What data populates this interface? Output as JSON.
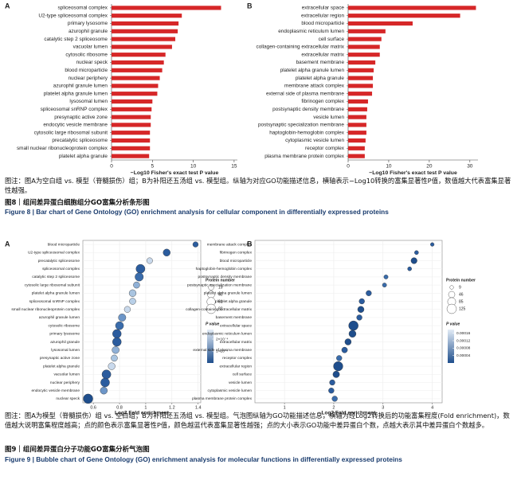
{
  "chart_data": [
    {
      "type": "bar",
      "panel": "A",
      "categories": [
        "spliceosomal complex",
        "U2-type spliceosomal complex",
        "primary lysosome",
        "azurophil granule",
        "catalytic step 2 spliceosome",
        "vacuolar lumen",
        "cytosolic ribosome",
        "nuclear speck",
        "blood microparticle",
        "nuclear periphery",
        "azurophil granule lumen",
        "platelet alpha granule lumen",
        "lysosomal lumen",
        "spliceosomal snRNP complex",
        "presynaptic active zone",
        "endocytic vesicle membrane",
        "cytosolic large ribosomal subunit",
        "precatalytic spliceosome",
        "small nuclear ribonucleoprotein complex",
        "platelet alpha granule"
      ],
      "values": [
        13.4,
        8.6,
        8.2,
        8.1,
        7.8,
        7.4,
        6.6,
        6.4,
        6.2,
        5.9,
        5.7,
        5.6,
        5.0,
        4.9,
        4.8,
        4.8,
        4.7,
        4.7,
        4.7,
        4.6
      ],
      "color": "#d62728",
      "xlim": [
        0,
        15.4
      ],
      "xticks": [
        0,
        5,
        10,
        15
      ],
      "x_label": "−Log10 Fisher's exact test P value"
    },
    {
      "type": "bar",
      "panel": "B",
      "categories": [
        "extracellular space",
        "extracellular region",
        "blood microparticle",
        "endoplasmic reticulum lumen",
        "cell surface",
        "collagen-containing extracellular matrix",
        "extracellular matrix",
        "basement membrane",
        "platelet alpha granule lumen",
        "platelet alpha granule",
        "membrane attack complex",
        "external side of plasma membrane",
        "fibrinogen complex",
        "postsynaptic density membrane",
        "vesicle lumen",
        "postsynaptic specialization membrane",
        "haptoglobin-hemoglobin complex",
        "cytoplasmic vesicle lumen",
        "receptor complex",
        "plasma membrane protein complex"
      ],
      "values": [
        31.5,
        27.6,
        15.9,
        9.2,
        8.2,
        7.8,
        7.8,
        6.7,
        6.3,
        6.1,
        6.1,
        5.9,
        4.9,
        4.7,
        4.5,
        4.5,
        4.5,
        4.3,
        4.1,
        4.1
      ],
      "color": "#d62728",
      "xlim": [
        0,
        32
      ],
      "xticks": [
        0,
        10,
        20,
        30
      ],
      "x_label": "−Log10 Fisher's exact test P value"
    },
    {
      "type": "bubble",
      "panel": "A",
      "categories": [
        "blood microparticle",
        "U2-type spliceosomal complex",
        "precatalytic spliceosome",
        "spliceosomal complex",
        "catalytic step 2 spliceosome",
        "cytosolic large ribosomal subunit",
        "platelet alpha granule lumen",
        "spliceosomal snRNP complex",
        "small nuclear ribonucleoprotein complex",
        "azurophil granule lumen",
        "cytosolic ribosome",
        "primary lysosome",
        "azurophil granule",
        "lysosomal lumen",
        "presynaptic active zone",
        "platelet alpha granule",
        "vacuolar lumen",
        "nuclear periphery",
        "endocytic vesicle membrane",
        "nuclear speck"
      ],
      "values": [
        1.38,
        1.16,
        1.03,
        0.96,
        0.95,
        0.93,
        0.9,
        0.9,
        0.86,
        0.82,
        0.8,
        0.78,
        0.78,
        0.77,
        0.76,
        0.74,
        0.7,
        0.69,
        0.68,
        0.56
      ],
      "sizes": [
        19,
        40,
        25,
        70,
        60,
        30,
        38,
        30,
        28,
        45,
        55,
        65,
        66,
        40,
        30,
        38,
        70,
        68,
        40,
        82
      ],
      "colors": [
        "#2b5c9e",
        "#2b5c9e",
        "#c9d9ec",
        "#2b5c9e",
        "#3a6cab",
        "#8fb0d6",
        "#a9c4e0",
        "#b8cfe7",
        "#c9d9ec",
        "#6d96c8",
        "#3a6cab",
        "#2b5c9e",
        "#2b5c9e",
        "#8fb0d6",
        "#a9c4e0",
        "#c9d9ec",
        "#2b5c9e",
        "#2b5c9e",
        "#6d96c8",
        "#1f4e8c"
      ],
      "xlim": [
        0.52,
        1.42
      ],
      "xticks": [
        0.6,
        0.8,
        1.0,
        1.2,
        1.4
      ],
      "x_label": "Log2 Fold enrichment",
      "size_title": "Protein number",
      "size_legend": [
        19,
        40,
        61,
        82
      ],
      "color_title": "P value",
      "colormap": [
        "#1f4e8c",
        "#e3ecf6"
      ],
      "clim": [
        0,
        0.00028
      ],
      "cticks": [
        {
          "value": 0.0002,
          "label": "2×10⁻⁴"
        },
        {
          "value": 0.0001,
          "label": "1×10⁻⁴"
        }
      ]
    },
    {
      "type": "bubble",
      "panel": "B",
      "categories": [
        "membrane attack complex",
        "fibrinogen complex",
        "blood microparticle",
        "haptoglobin-hemoglobin complex",
        "postsynaptic density membrane",
        "postsynaptic specialization membrane",
        "platelet alpha granule lumen",
        "platelet alpha granule",
        "collagen-containing extracellular matrix",
        "basement membrane",
        "extracellular space",
        "endoplasmic reticulum lumen",
        "extracellular matrix",
        "external side of plasma membrane",
        "receptor complex",
        "extracellular region",
        "cell surface",
        "vesicle lumen",
        "cytoplasmic vesicle lumen",
        "plasma membrane protein complex"
      ],
      "values": [
        4.0,
        3.68,
        3.63,
        3.54,
        3.06,
        3.03,
        2.71,
        2.57,
        2.55,
        2.52,
        2.4,
        2.38,
        2.29,
        2.22,
        2.11,
        2.09,
        2.05,
        1.97,
        1.95,
        2.02
      ],
      "sizes": [
        9,
        12,
        40,
        12,
        14,
        14,
        30,
        30,
        45,
        30,
        125,
        60,
        45,
        35,
        30,
        120,
        50,
        30,
        30,
        30
      ],
      "colors": [
        "#2b5c9e",
        "#2b5c9e",
        "#1f4e8c",
        "#2b5c9e",
        "#3a6cab",
        "#3a6cab",
        "#2b5c9e",
        "#2b5c9e",
        "#1f4e8c",
        "#2b5c9e",
        "#1f4e8c",
        "#1f4e8c",
        "#1f4e8c",
        "#2b5c9e",
        "#3a6cab",
        "#1f4e8c",
        "#1f4e8c",
        "#2b5c9e",
        "#2b5c9e",
        "#3a6cab"
      ],
      "xlim": [
        0.4,
        4.2
      ],
      "xticks": [
        1,
        2,
        3,
        4
      ],
      "x_label": "Log2 Fold enrichment",
      "size_title": "Protein number",
      "size_legend": [
        9,
        46,
        85,
        125
      ],
      "color_title": "P value",
      "colormap": [
        "#1f4e8c",
        "#e3ecf6"
      ],
      "clim": [
        0,
        0.00018
      ],
      "cticks": [
        0.00016,
        0.00012,
        8e-05,
        4e-05
      ]
    }
  ],
  "captions": [
    {
      "note": "图注：图A为空白组 vs. 模型（脊髓损伤）组；B为补阳还五汤组 vs. 模型组。纵轴为对应GO功能描述信息，横轴表示−Log10转换的富集显著性P值，数值越大代表富集显著性越强。",
      "title_zh": "图8｜组间差异蛋白细胞组分GO富集分析条形图",
      "title_en": "Figure 8 | Bar chart of Gene Ontology (GO) enrichment analysis for cellular component in differentially expressed proteins"
    },
    {
      "note": "图注：图A为模型（脊髓损伤）组 vs. 空白组；B为补阳还五汤组 vs. 模型组。气泡图纵轴为GO功能描述信息，横轴为经Log2转换后的功能富集程度(Fold enrichment)，数值越大说明富集程度越高；点的颜色表示富集显著性P值，颜色越蓝代表富集显著性越强；点的大小表示GO功能中差异蛋白个数，点越大表示其中差异蛋白个数越多。",
      "title_zh": "图9｜组间差异蛋白分子功能GO富集分析气泡图",
      "title_en": "Figure 9 | Bubble chart of Gene Ontology (GO) enrichment analysis for molecular functions in differentially expressed proteins"
    }
  ]
}
